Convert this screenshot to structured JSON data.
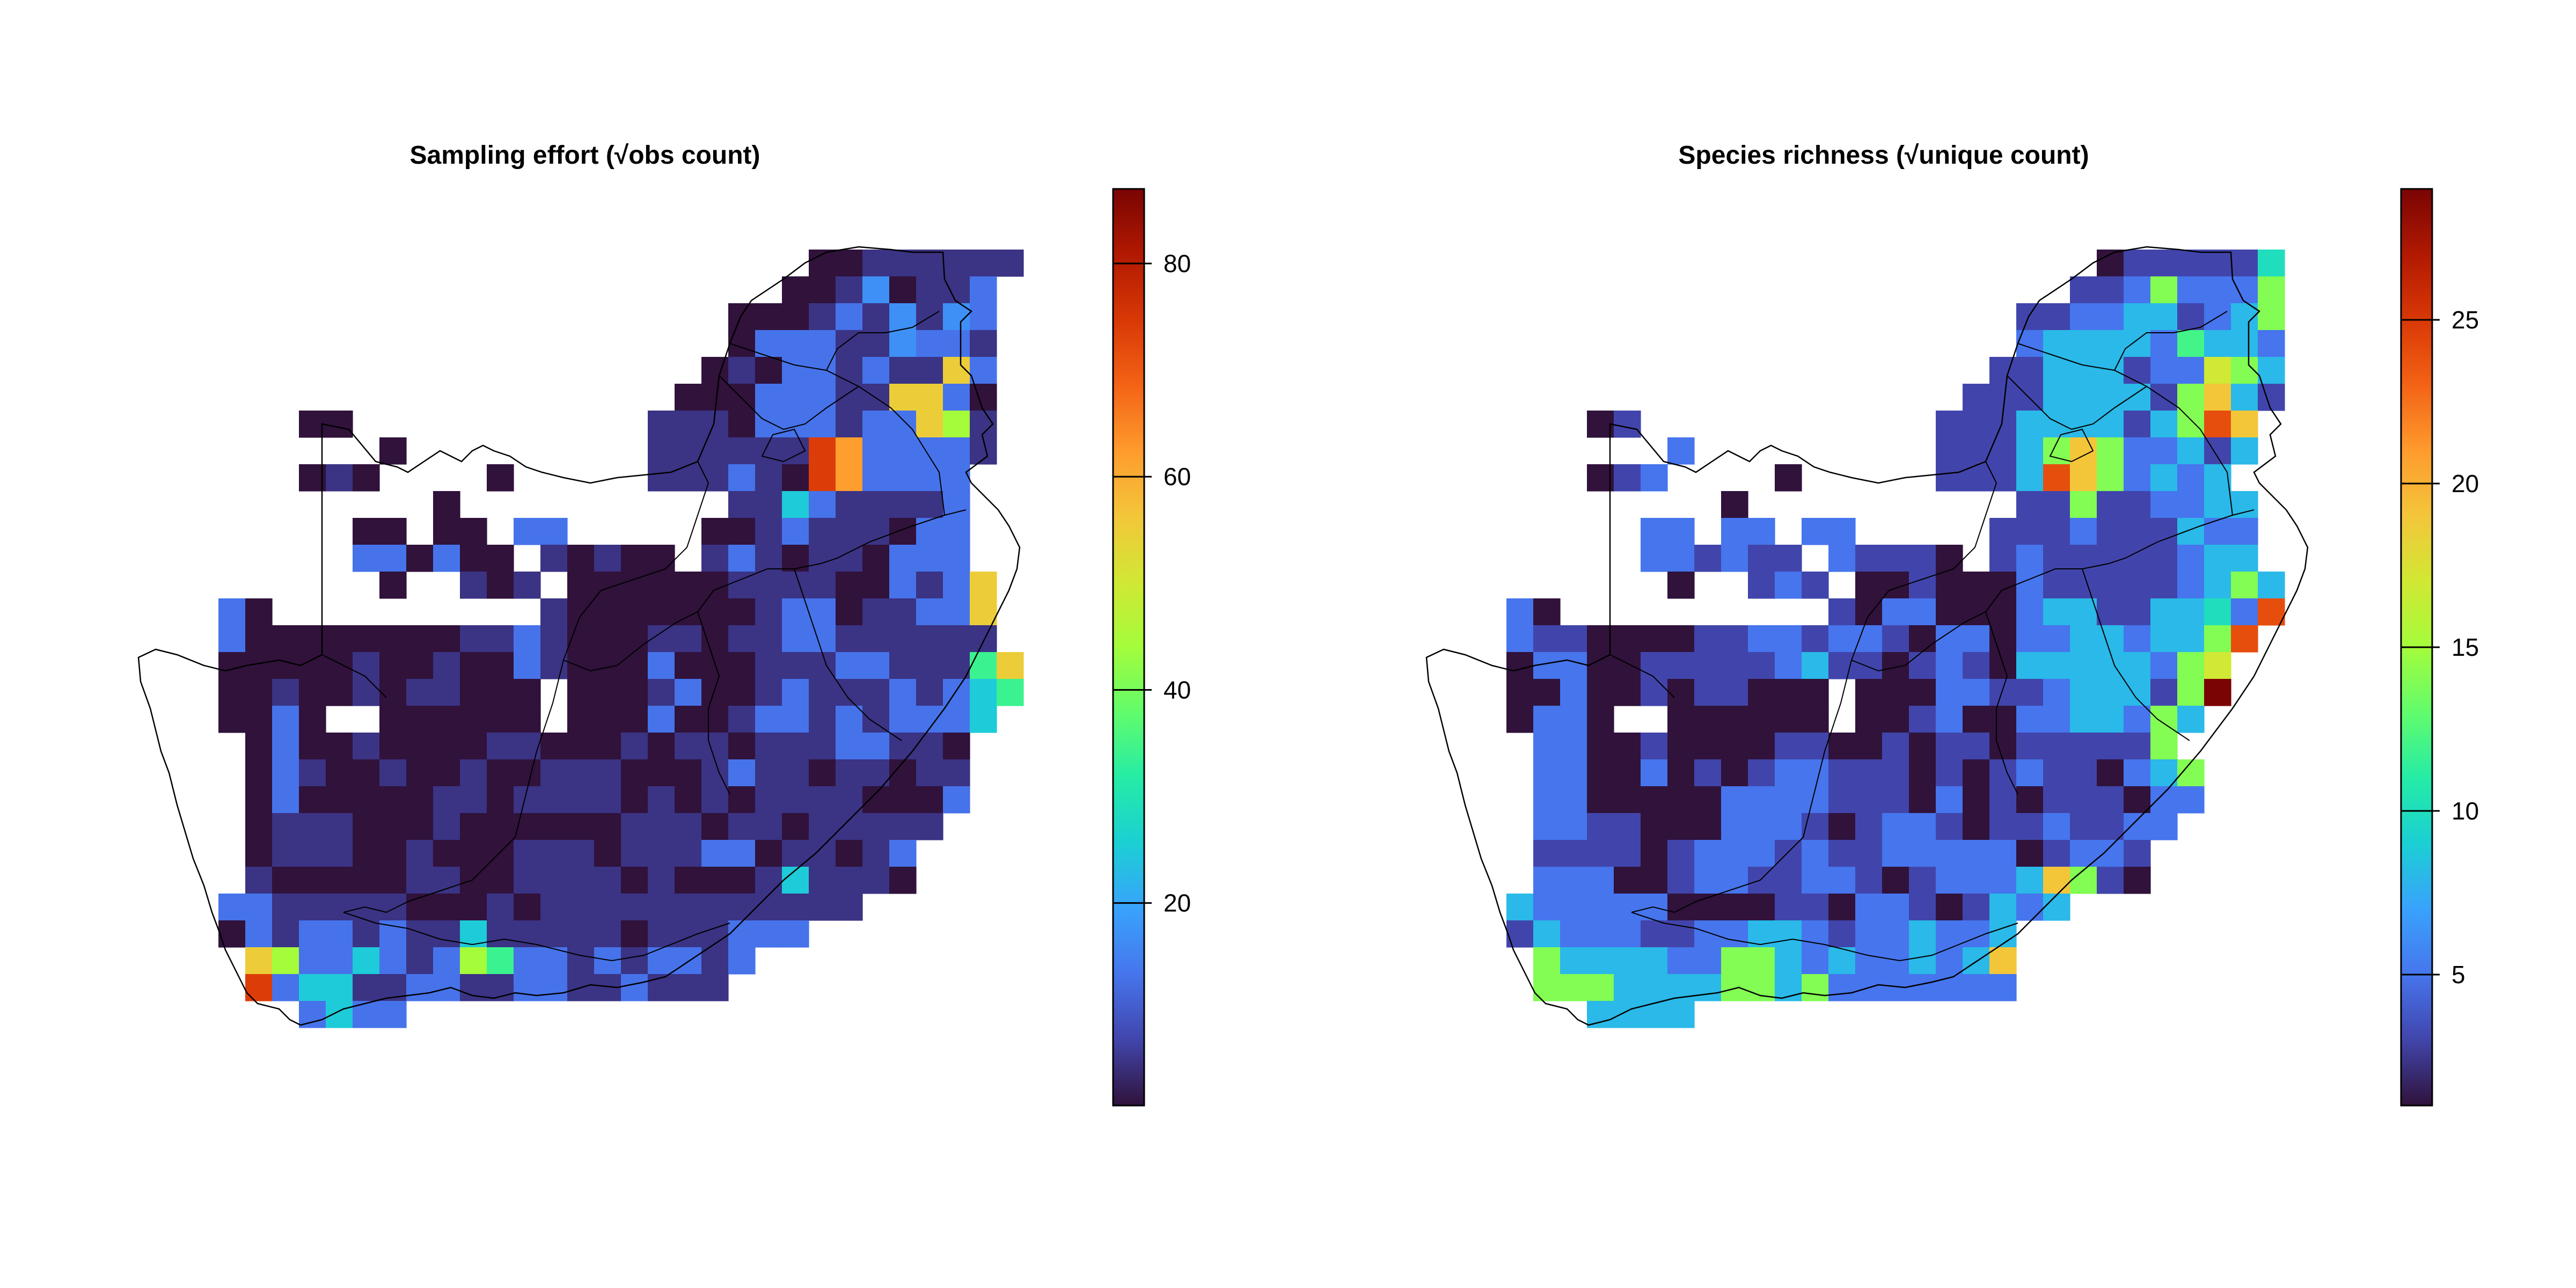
{
  "colors": {
    "scale": [
      "#30123b",
      "#4145ab",
      "#4675ed",
      "#39a2fc",
      "#1bcfd4",
      "#24eca6",
      "#61fc6c",
      "#a4fc3b",
      "#d1e834",
      "#f3c63a",
      "#fe9b2d",
      "#f36315",
      "#d93806",
      "#b11901",
      "#7a0403"
    ],
    "empty": "#ffffff",
    "outline": "#000000"
  },
  "chart_data": [
    {
      "type": "heatmap",
      "title": "Sampling effort (√obs count)",
      "colorbar_ticks": [
        "20",
        "40",
        "60",
        "80"
      ],
      "colorbar_tick_values": [
        20,
        40,
        60,
        80
      ],
      "range": [
        1,
        87
      ],
      "grid": false,
      "legend": "right",
      "rows": [
        ".........................PPRRRRRR.........",
        "........................PPRKPRRS..........",
        "......................PPPRSRKRKS..........",
        "......................PSSSRRKSSR..........",
        ".....................PRPSSRSRRXS..........",
        "....................PPPSSSRRXXSP..........",
        "......PP...........RRRPSSSRSSXWR..........",
        ".........P.........RRRRRRZYSSSSR..........",
        "......PRP....P.....RRRSRPZYSSSS...........",
        "...........P..........RRTSRRRRS...........",
        "........PP.PP.SS.....PPRSRRRPSS...........",
        "........SSPSPP.RPRPP.RSRPRRPSSS...........",
        ".........P..RPR.PPPPPPRRRRPPSRSX..........",
        "...SP..........RPPPPPPPRSSPRRSSX..........",
        "...SPPPPPPPPRRSRPPPRRPRRSSRRRRRR..........",
        "...PPPPPRPPRPPSRPPPSPPPRRRSSRRRUX.........",
        "...PPRPPRPRRPPP.PPPRSPPRSRRRSRSTU.........",
        "...PPSP..PPPPPP.PPPSPPRSSRSRSSST..........",
        "....PSPPRPPPPRRPPPRPRRPRRRSSRRP...........",
        "....PSRPPRPPRPPRRRPPPRSRRPRRPRR...........",
        "....PSPPPPPRRPRRRRPRPRPRRRRPPPS...........",
        "....PRRRPPPRPPPPPPRRRPRRPRRRRR............",
        "....PRRRPPRPPPRRRPRRRSSPRRPRS.............",
        "....RPPPPPRRPPRRRRPRPPPRTRRRP.............",
        "...SSRRRRRPPPRPRRRRRRRRRRRR...............",
        "...PSRSSRSRRTRRRRRPRRRSSS.................",
        "....XWSSTSRSWUSSRSRSSRS...................",
        "....ZSTTRRSSRRSSRRSRRR....................",
        "......STSS................................"
      ],
      "palette": {
        "P": 1,
        "R": 5,
        "S": 13,
        "K": 17,
        "T": 25,
        "U": 34,
        "V": 40,
        "W": 44,
        "X": 55,
        "Y": 62,
        "Z": 74,
        "Q": 87
      }
    },
    {
      "type": "heatmap",
      "title": "Species richness (√unique count)",
      "colorbar_ticks": [
        "5",
        "10",
        "15",
        "20",
        "25"
      ],
      "colorbar_tick_values": [
        5,
        10,
        15,
        20,
        25
      ],
      "range": [
        1,
        29
      ],
      "grid": false,
      "legend": "right",
      "rows": [
        ".........................PRRRRRU..........",
        "........................RRSWSSSW..........",
        "......................RRSSTTRSTW..........",
        "......................STTTTSKTTS..........",
        ".....................RRTTTRSSXWT..........",
        "....................RRRTTTTRWYTR..........",
        "......PR...........RRRTTTTRTWZY...........",
        ".........S.........RRRTWYWSSTRT...........",
        "......PRS....P.....RRRTZYWSTST............",
        "...........P..........RRWRRSSTT...........",
        "........SS.SS.SS.....RRRSRRRTSS...........",
        "........SSRSRR.SRRRP.RSRRRRRSTT...........",
        ".........P..RSR.PPRPPPSRRRRRSTWT..........",
        "...SP..........RPSSPPPSTTRRTTUSZ..........",
        "...SRRPPPPRRSSRSSRPSSPSSTTSTTWZ...........",
        "...PSSPPRRRRRSTRRPRSRPTTTTTSWX............",
        "...PPSPPRPRRPPP.PPPSSRRSTTTRWQ............",
        "...PSSP..PPPPPP.PPRSPPSSTTSWT.............",
        "....SSPPRPPPPRRPPRPRRPRRRRRW..............",
        "....SSPPSPRPRSSRRRPRPRSRRPSTW.............",
        "....SSPPPPPSSSSRRRPSPRPRRRPSS.............",
        "....SSRRPPPSSSRPRSSRPRRSRRSS..............",
        "....RRRRPRSSSRSRRSSSSSPRSSR...............",
        "....SSSPPRSSRRSSRPRSSSTYWRP...............",
        "...TSSSSSPPPPRRPSSRPRTST..................",
        "...RTSSSRRSSTTSRSSTSST....................",
        "....WTTTTSSWWTSTSSTSTY....................",
        "....WWWTTTTWWTWSSSSSSS....................",
        "......TTTT................................"
      ],
      "palette": {
        "P": 1,
        "R": 3,
        "S": 5,
        "T": 8,
        "U": 10,
        "K": 12,
        "W": 14,
        "X": 17,
        "Y": 19,
        "Z": 24,
        "Q": 29
      }
    }
  ]
}
